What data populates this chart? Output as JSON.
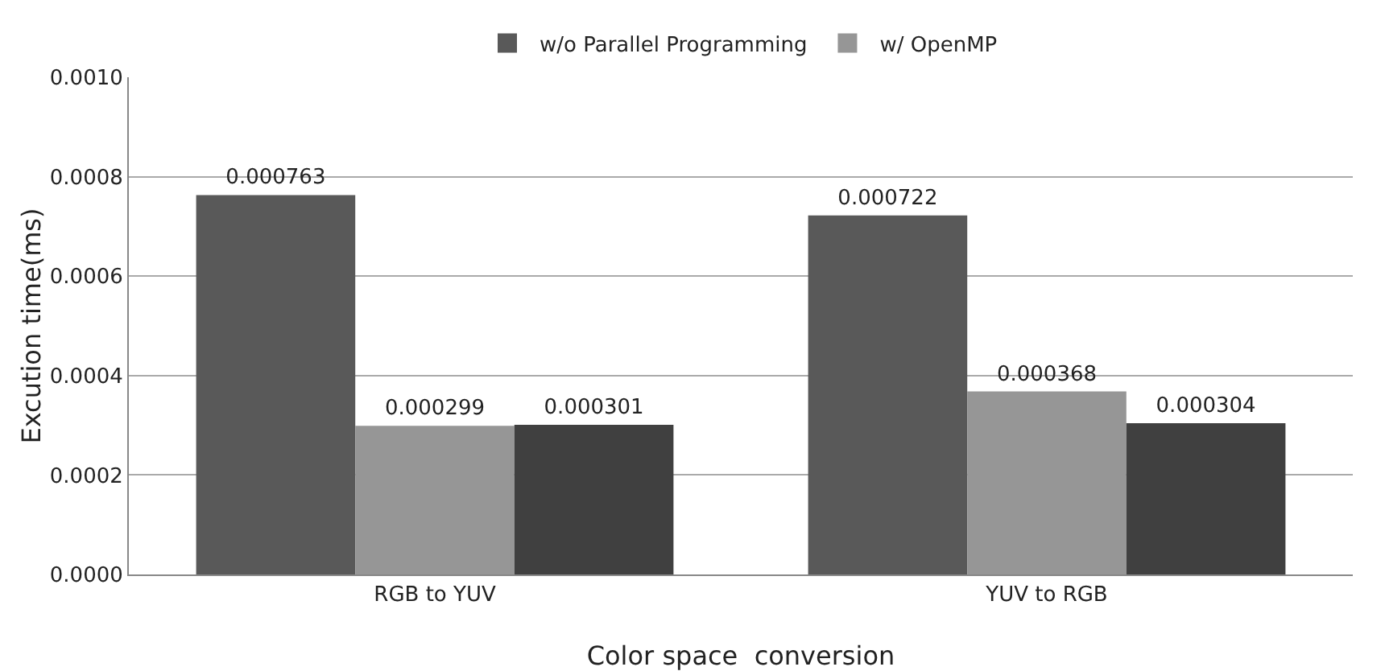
{
  "chart_data": {
    "type": "bar",
    "xlabel": "Color space  conversion",
    "ylabel": "Excution time(ms)",
    "categories": [
      "RGB to YUV",
      "YUV to RGB"
    ],
    "series": [
      {
        "name": "w/o Parallel Programming",
        "color": "#595959",
        "values": [
          0.000763,
          0.000722
        ]
      },
      {
        "name": "w/ OpenMP",
        "color": "#969696",
        "values": [
          0.000299,
          0.000368
        ]
      },
      {
        "color": "#404040",
        "values": [
          0.000301,
          0.000304
        ]
      }
    ],
    "ylim": [
      0,
      0.001
    ],
    "yticks": [
      {
        "value": 0,
        "label": "0.0000"
      },
      {
        "value": 0.0002,
        "label": "0.0002"
      },
      {
        "value": 0.0004,
        "label": "0.0004"
      },
      {
        "value": 0.0006,
        "label": "0.0006"
      },
      {
        "value": 0.0008,
        "label": "0.0008"
      },
      {
        "value": 0.001,
        "label": "0.0010"
      }
    ],
    "grid": "y",
    "legend": "top",
    "data_labels": true
  }
}
